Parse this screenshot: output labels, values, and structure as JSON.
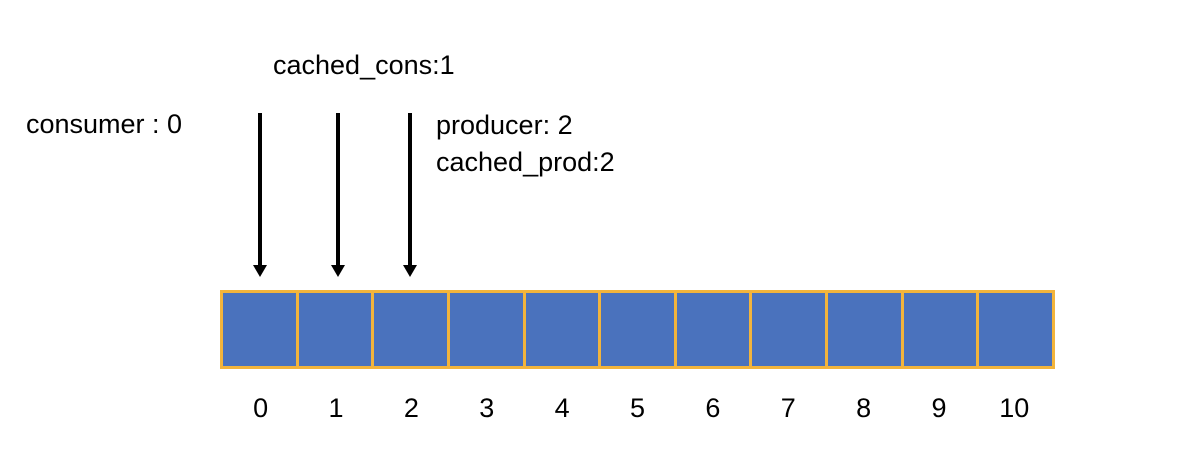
{
  "labels": {
    "cached_cons": "cached_cons:1",
    "consumer": "consumer : 0",
    "producer": "producer: 2",
    "cached_prod": "cached_prod:2"
  },
  "pointers": [
    {
      "name": "consumer",
      "target_index": 0
    },
    {
      "name": "cached_cons",
      "target_index": 1
    },
    {
      "name": "producer / cached_prod",
      "target_index": 2
    }
  ],
  "buffer": {
    "indices": [
      "0",
      "1",
      "2",
      "3",
      "4",
      "5",
      "6",
      "7",
      "8",
      "9",
      "10"
    ],
    "cell_color": "#4a72bd",
    "border_color": "#f2b43c"
  },
  "colors": {
    "arrow": "#000000",
    "text": "#000000",
    "background": "#ffffff"
  }
}
